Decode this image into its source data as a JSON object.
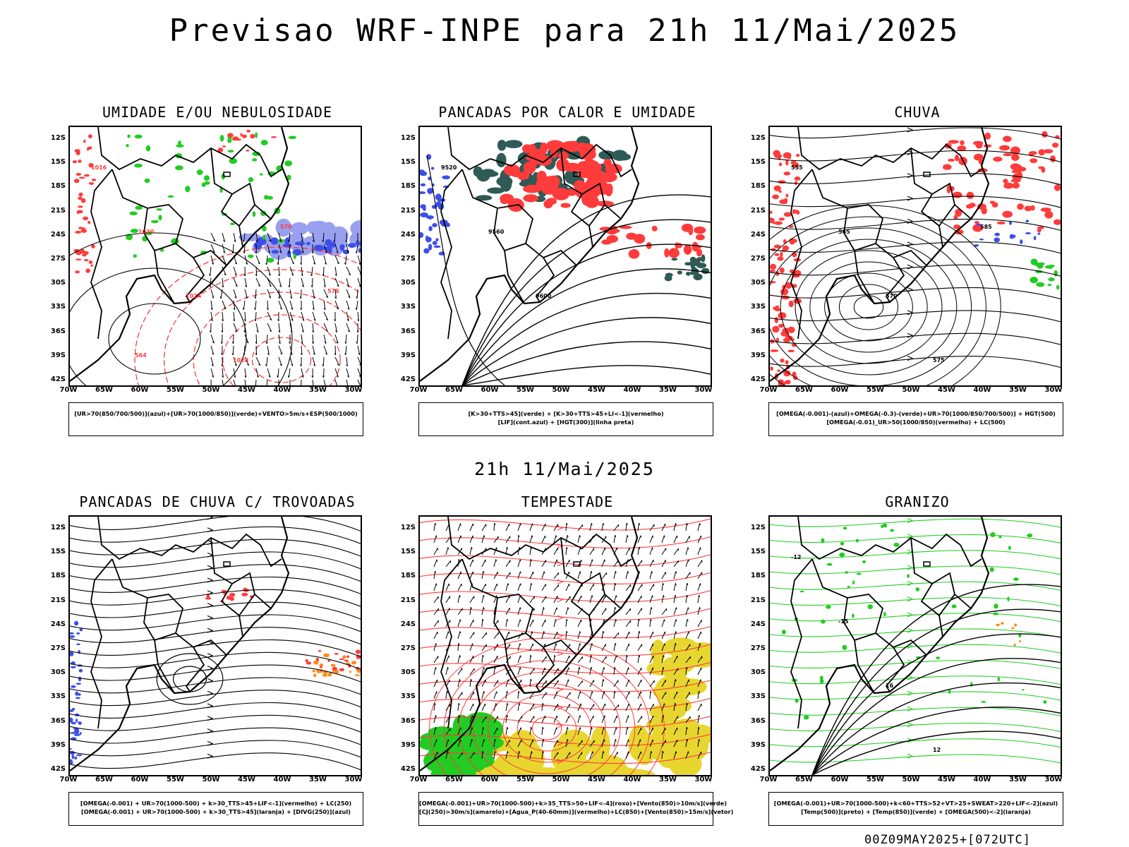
{
  "title": "Previsao WRF-INPE  para 21h 11/Mai/2025",
  "subtitle": "21h 11/Mai/2025",
  "footer": "00Z09MAY2025+[072UTC]",
  "y_ticks": [
    "12S",
    "15S",
    "18S",
    "21S",
    "24S",
    "27S",
    "30S",
    "33S",
    "36S",
    "39S",
    "42S"
  ],
  "x_ticks": [
    "70W",
    "65W",
    "60W",
    "55W",
    "50W",
    "45W",
    "40W",
    "35W",
    "30W"
  ],
  "colors": {
    "blue": "#3b4fe8",
    "green": "#22cc22",
    "red": "#ff3b3b",
    "orange": "#ff8a1a",
    "yellow": "#e8d630",
    "dark": "#2f5a55",
    "purple": "#9aa0f0"
  },
  "panels": [
    {
      "id": "p1",
      "title": "UMIDADE E/OU NEBULOSIDADE",
      "legend": [
        "[UR>70(850/700/500)](azul)+[UR>70(1000/850)](verde)+VENTO>5m/s+ESP(500/1000)"
      ],
      "labels": [
        "1016",
        "1020",
        "1024",
        "1028",
        "570",
        "576",
        "564"
      ]
    },
    {
      "id": "p2",
      "title": "PANCADAS POR CALOR E UMIDADE",
      "legend": [
        "[K>30+TTS>45](verde)  +  [K>30+TTS>45+LI<-1](vermelho)",
        "[LIF](cont.azul)  +  [HGT(300)](linha preta)"
      ],
      "labels": [
        "9520",
        "9560",
        "9600"
      ]
    },
    {
      "id": "p3",
      "title": "CHUVA",
      "legend": [
        "[OMEGA(-0.001)-(azul)+OMEGA(-0.3)-(verde)+UR>70(1000/850/700/500)]  +  HGT(500)",
        "[OMEGA(-0.01)_UR>50(1000/850)(vermelho)  +  LC(500)"
      ],
      "labels": [
        "555",
        "565",
        "570",
        "575",
        "585"
      ]
    },
    {
      "id": "p4",
      "title": "PANCADAS DE CHUVA C/ TROVOADAS",
      "legend": [
        "[OMEGA(-0.001) + UR>70(1000-500) + k>30_TTS>45+LIF<-1](vermelho) + LC(250)",
        "[OMEGA(-0.001) + UR>70(1000-500) + k>30_TTS>45](laranja) + [DIVG(250)](azul)"
      ],
      "labels": []
    },
    {
      "id": "p5",
      "title": "TEMPESTADE",
      "legend": [
        "[OMEGA(-0.001)+UR>70(1000-500)+k>35_TTS>50+LIF<-4](roxo)+[Vento(850)>10m/s](verde)",
        "[CJ(250)>30m/s](amarelo)+[Agua_P(40-60mm)](vermelho)+LC(850)+[Vento(850)>15m/s](vetor)"
      ],
      "labels": []
    },
    {
      "id": "p6",
      "title": "GRANIZO",
      "legend": [
        "[OMEGA(-0.001)+UR>70(1000-500)+k<60+TTS>52+VT>25+SWEAT>220+LIF<-2](azul)",
        "[Temp(500)](preto)  +  [Temp(850)](verde)  +  [OMEGA(500)<-2](laranja)"
      ],
      "labels": [
        "-12",
        "-15",
        "16",
        "12"
      ]
    }
  ]
}
